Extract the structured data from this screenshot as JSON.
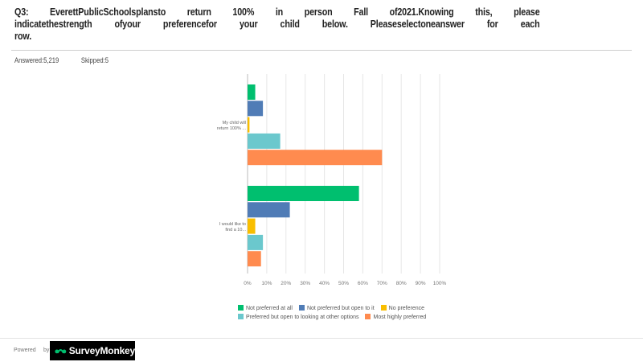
{
  "question": {
    "words": [
      "Q3:",
      "EverettPublicSchoolsplansto",
      "return",
      "100%",
      "in",
      "person",
      "Fall",
      "of2021.Knowing",
      "this,",
      "please",
      "indicatethestrength",
      "ofyour",
      "preferencefor",
      "your",
      "child",
      "below.",
      "Pleaseselectoneanswer",
      "for",
      "each",
      "row."
    ]
  },
  "stats": {
    "answered": "Answered:5,219",
    "skipped": "Skipped:5"
  },
  "chart_data": {
    "type": "bar",
    "orientation": "horizontal",
    "categories": [
      "My child will return 100% ...",
      "I would like to find a 10..."
    ],
    "series": [
      {
        "name": "Not preferred at all",
        "color": "#00bf6f",
        "values": [
          4,
          58
        ]
      },
      {
        "name": "Not preferred but open to it",
        "color": "#507cb6",
        "values": [
          8,
          22
        ]
      },
      {
        "name": "No preference",
        "color": "#f9be00",
        "values": [
          1,
          4
        ]
      },
      {
        "name": "Preferred but open to looking at other options",
        "color": "#6bc8cd",
        "values": [
          17,
          8
        ]
      },
      {
        "name": "Most highly preferred",
        "color": "#ff8b4f",
        "values": [
          70,
          7
        ]
      }
    ],
    "xlim": [
      0,
      100
    ],
    "xticks": [
      "0%",
      "10%",
      "20%",
      "30%",
      "40%",
      "50%",
      "60%",
      "70%",
      "80%",
      "90%",
      "100%"
    ],
    "grid": true,
    "legend": "bottom"
  },
  "footer": {
    "powered": "Powered",
    "by": "by",
    "brand": "SurveyMonkey"
  }
}
